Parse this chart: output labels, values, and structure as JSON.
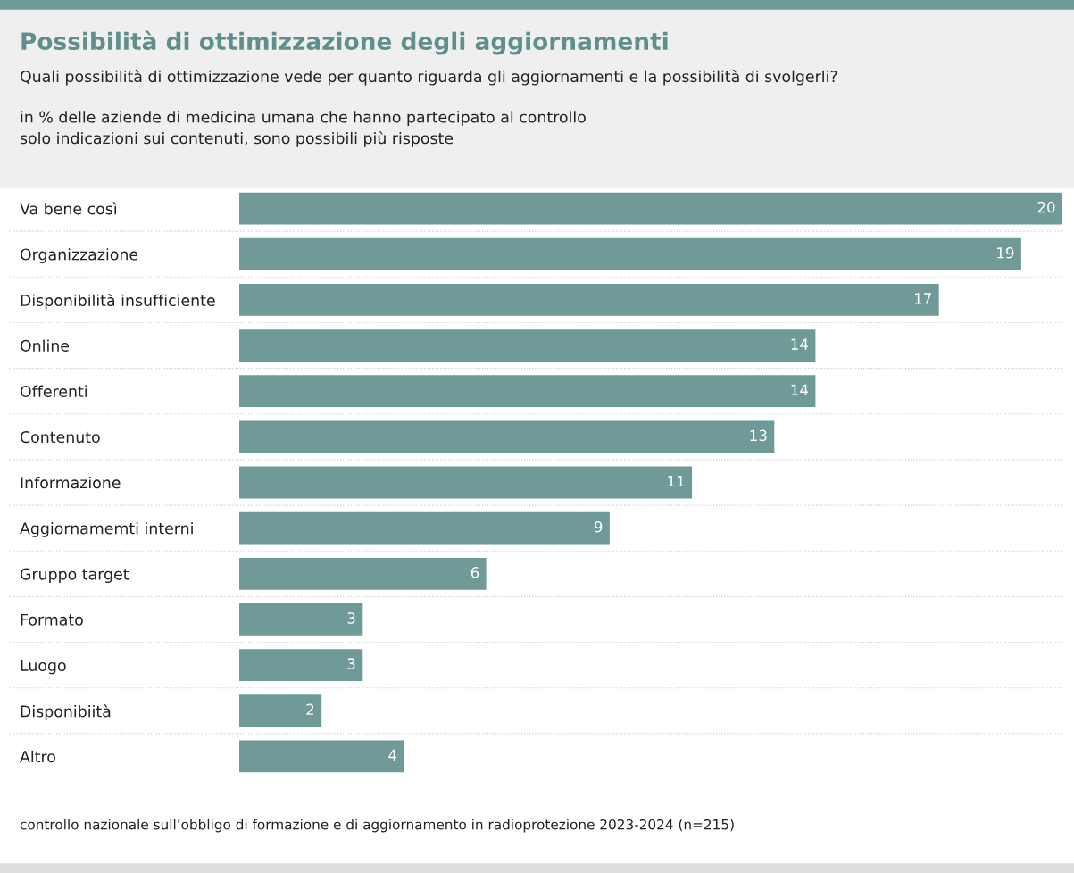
{
  "chart_data": {
    "type": "bar",
    "orientation": "horizontal",
    "title": "Possibilità di ottimizzazione degli aggiornamenti",
    "subtitle": "Quali possibilità di ottimizzazione vede per quanto riguarda gli aggiornamenti e la possibilità di svolgerli?\n\nin % delle aziende di medicina umana che hanno partecipato al controllo\nsolo indicazioni sui contenuti, sono possibili più risposte",
    "categories": [
      "Va bene così",
      "Organizzazione",
      "Disponibilità insufficiente",
      "Online",
      "Offerenti",
      "Contenuto",
      "Informazione",
      "Aggiornamemti interni",
      "Gruppo target",
      "Formato",
      "Luogo",
      "Disponibiità",
      "Altro"
    ],
    "values": [
      20,
      19,
      17,
      14,
      14,
      13,
      11,
      9,
      6,
      3,
      3,
      2,
      4
    ],
    "color": "#6f9a98",
    "data_labels": true,
    "annotations": [
      "controllo nazionale sull’obbligo di formazione e di aggiornamento in radioprotezione 2023-2024 (n=215)"
    ]
  }
}
